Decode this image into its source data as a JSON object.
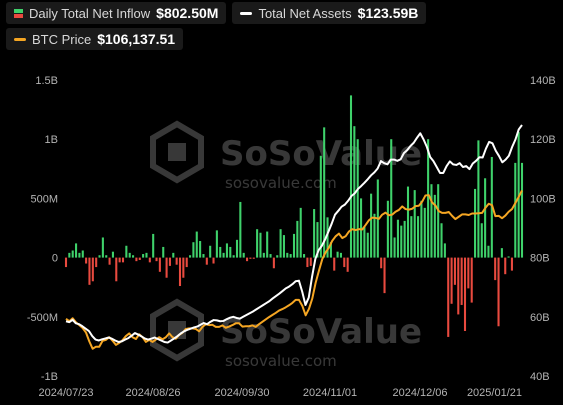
{
  "legend": {
    "inflow": {
      "label": "Daily Total Net Inflow",
      "value": "$802.50M",
      "color_pos": "#3fd26b",
      "color_neg": "#e94a3f"
    },
    "assets": {
      "label": "Total Net Assets",
      "value": "$123.59B",
      "color": "#ffffff"
    },
    "btc": {
      "label": "BTC Price",
      "value": "$106,137.51",
      "color": "#f5a623"
    }
  },
  "watermark": {
    "brand": "SoSoValue",
    "site": "sosovalue.com"
  },
  "chart_data": {
    "type": "bar",
    "x_ticks": [
      "2024/07/23",
      "2024/08/26",
      "2024/09/30",
      "2024/11/01",
      "2024/12/06",
      "2025/01/21"
    ],
    "y_left_ticks": [
      "1.5B",
      "1B",
      "500M",
      "0",
      "-500M",
      "-1B"
    ],
    "y_left_range": [
      -1000000000,
      1500000000
    ],
    "y_right_ticks": [
      "140B",
      "120B",
      "100B",
      "80B",
      "60B",
      "40B"
    ],
    "y_right_range": [
      40000000000,
      140000000000
    ],
    "grid": false,
    "series": [
      {
        "name": "Daily Total Net Inflow",
        "kind": "bar",
        "axis": "left",
        "values": [
          -80,
          40,
          60,
          120,
          40,
          60,
          -50,
          -230,
          -200,
          -80,
          20,
          170,
          20,
          -60,
          50,
          -200,
          -40,
          -40,
          100,
          40,
          20,
          -30,
          -20,
          30,
          40,
          -40,
          200,
          -30,
          -120,
          90,
          -170,
          -70,
          40,
          -60,
          -240,
          -170,
          -80,
          20,
          130,
          220,
          140,
          30,
          -60,
          100,
          -50,
          230,
          90,
          40,
          120,
          90,
          20,
          150,
          470,
          40,
          -30,
          -10,
          -10,
          240,
          210,
          40,
          220,
          30,
          -90,
          20,
          240,
          190,
          40,
          30,
          200,
          310,
          420,
          30,
          -80,
          -70,
          410,
          300,
          860,
          1100,
          340,
          130,
          -110,
          50,
          40,
          -80,
          -120,
          1370,
          1110,
          1000,
          500,
          260,
          210,
          540,
          370,
          660,
          -90,
          -300,
          480,
          1000,
          170,
          320,
          270,
          310,
          600,
          350,
          570,
          350,
          480,
          420,
          1000,
          620,
          530,
          620,
          290,
          120,
          -670,
          -390,
          -230,
          -480,
          -400,
          -620,
          -260,
          -380,
          580,
          990,
          290,
          670,
          100,
          850,
          -190,
          -580,
          80,
          -140,
          10,
          -110,
          800,
          1060,
          800
        ]
      },
      {
        "name": "Total Net Assets",
        "kind": "line",
        "axis": "right",
        "values": [
          58.5,
          58.2,
          59,
          57.8,
          57.5,
          56.8,
          56,
          55.2,
          53.5,
          52.3,
          52,
          52.4,
          52.7,
          53,
          52.6,
          52,
          51.5,
          51.7,
          52.3,
          52.8,
          53.6,
          54.5,
          54,
          53.4,
          52.7,
          52.3,
          52.6,
          53,
          52.5,
          52,
          51.5,
          51.3,
          52,
          52.7,
          53.5,
          54.4,
          55.1,
          55.6,
          56,
          56.4,
          56.7,
          57.3,
          57.9,
          57.5,
          58.3,
          58.9,
          58.8,
          58.5,
          58.6,
          59.2,
          59.7,
          60,
          59.6,
          59.4,
          60,
          60.6,
          61.2,
          61.8,
          62.5,
          63.2,
          63.9,
          64.6,
          65.3,
          66.2,
          67,
          67.8,
          68.7,
          69.6,
          70.2,
          71,
          72,
          72.2,
          68.5,
          64,
          66.5,
          73.5,
          79.5,
          82.5,
          84,
          86.2,
          88.8,
          91.5,
          94.5,
          95.8,
          97.2,
          97.9,
          99.2,
          100.8,
          101.7,
          103.2,
          104.2,
          105.3,
          106.5,
          107.8,
          108.8,
          110.1,
          112.6,
          111.9,
          111.5,
          113.1,
          113.1,
          112.7,
          113.2,
          115.3,
          116.3,
          117.7,
          118.8,
          120.5,
          122,
          119.9,
          117.4,
          114,
          112.6,
          110.6,
          108.6,
          108.6,
          110.9,
          112.5,
          111.5,
          111.3,
          111.9,
          110.6,
          110.9,
          109.9,
          111.8,
          112.7,
          113.9,
          113.8,
          116.8,
          119.1,
          118.6,
          116.1,
          114.3,
          112.2,
          113.1,
          114.4,
          117.4,
          119.9,
          123.3,
          124.8
        ]
      },
      {
        "name": "BTC Price",
        "kind": "line",
        "axis": "right",
        "values": [
          59.3,
          58.5,
          59.5,
          58.1,
          57.2,
          56.2,
          54.7,
          51.7,
          49.2,
          49.9,
          49.9,
          51.9,
          52.2,
          53.1,
          51.9,
          50.5,
          51.2,
          52.1,
          53.5,
          54.4,
          53.1,
          52.5,
          54.1,
          53.1,
          51.5,
          52.2,
          51.5,
          52.3,
          53.1,
          52.4,
          53.1,
          54.4,
          53.1,
          52.6,
          53.9,
          54.6,
          55.9,
          56.1,
          56.1,
          55.9,
          55.1,
          56.6,
          57.5,
          57.2,
          57.3,
          56.6,
          56.6,
          57.1,
          56.3,
          56.7,
          57.2,
          57.8,
          57.8,
          56.7,
          56.8,
          56.8,
          57.1,
          56.6,
          57.5,
          58.3,
          59.1,
          59.9,
          60.6,
          61.3,
          62.1,
          62.6,
          63.2,
          63.9,
          64.7,
          65.7,
          65.7,
          63.7,
          60.5,
          62.7,
          66.2,
          71.5,
          75.6,
          79.5,
          81.8,
          83.4,
          85.7,
          87.2,
          88.1,
          86.6,
          87.2,
          88.8,
          89.6,
          89.3,
          89.6,
          89.5,
          91,
          92.6,
          93.5,
          93.4,
          93.1,
          94.5,
          95.2,
          94.3,
          94.5,
          95.5,
          96.1,
          97.3,
          96.4,
          96.2,
          96.5,
          97.4,
          97.5,
          98.9,
          101,
          101.1,
          98.6,
          97.6,
          95.7,
          95.1,
          95.1,
          95.4,
          94.1,
          93,
          93.8,
          94.6,
          94.6,
          94.4,
          94.9,
          94.9,
          95,
          95.1,
          96.8,
          98.2,
          97.7,
          94,
          94.1,
          93.3,
          94.2,
          95.5,
          96.4,
          98.4,
          100.5,
          102.7
        ]
      }
    ]
  }
}
